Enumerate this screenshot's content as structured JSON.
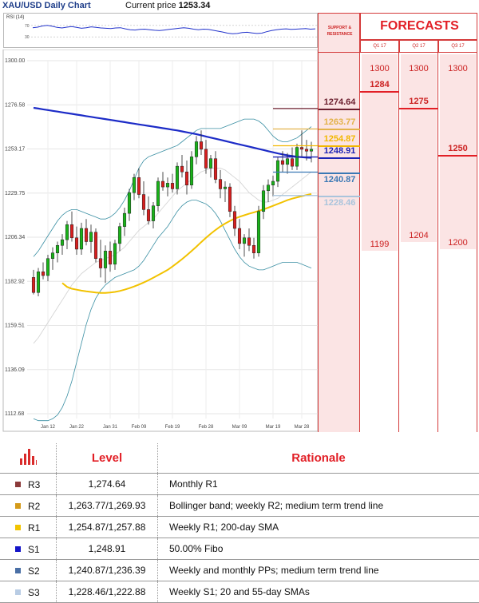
{
  "header": {
    "title": "XAU/USD Daily Chart",
    "current_price_label": "Current price",
    "current_price": "1253.34"
  },
  "rsi": {
    "label": "RSI (14)",
    "ticks": [
      "70",
      "30"
    ],
    "values": [
      62,
      64,
      68,
      70,
      67,
      63,
      61,
      64,
      66,
      63,
      60,
      62,
      65,
      63,
      61,
      60,
      59,
      61,
      62,
      58,
      55,
      54,
      56,
      57,
      55,
      53,
      52,
      54,
      56,
      58,
      60,
      62,
      60,
      57,
      55,
      57,
      56,
      53,
      50,
      47,
      43,
      41,
      42,
      45,
      46,
      44,
      42,
      43,
      48,
      52,
      55,
      57,
      58,
      56,
      57,
      58,
      59,
      57,
      58
    ]
  },
  "chart_data": {
    "type": "candlestick",
    "ylim": [
      1105,
      1310
    ],
    "y_ticks": [
      "1300.00",
      "1276.58",
      "1253.17",
      "1229.75",
      "1206.34",
      "1182.92",
      "1159.51",
      "1136.09",
      "1112.68"
    ],
    "x_ticks": [
      {
        "label": "Jan 12",
        "index": 3
      },
      {
        "label": "Jan 22",
        "index": 9
      },
      {
        "label": "Jan 31",
        "index": 16
      },
      {
        "label": "Feb 09",
        "index": 22
      },
      {
        "label": "Feb 19",
        "index": 29
      },
      {
        "label": "Feb 28",
        "index": 36
      },
      {
        "label": "Mar 09",
        "index": 43
      },
      {
        "label": "Mar 19",
        "index": 50
      },
      {
        "label": "Mar 28",
        "index": 56
      }
    ],
    "candles": [
      [
        1185,
        1189,
        1176,
        1177
      ],
      [
        1177,
        1190,
        1175,
        1188
      ],
      [
        1188,
        1193,
        1184,
        1186
      ],
      [
        1186,
        1197,
        1183,
        1195
      ],
      [
        1195,
        1201,
        1189,
        1198
      ],
      [
        1198,
        1204,
        1193,
        1202
      ],
      [
        1202,
        1208,
        1197,
        1205
      ],
      [
        1205,
        1215,
        1200,
        1213
      ],
      [
        1213,
        1220,
        1204,
        1206
      ],
      [
        1206,
        1212,
        1197,
        1200
      ],
      [
        1200,
        1214,
        1197,
        1211
      ],
      [
        1211,
        1216,
        1202,
        1204
      ],
      [
        1204,
        1213,
        1198,
        1209
      ],
      [
        1209,
        1211,
        1193,
        1195
      ],
      [
        1195,
        1205,
        1185,
        1190
      ],
      [
        1190,
        1202,
        1182,
        1199
      ],
      [
        1199,
        1204,
        1188,
        1192
      ],
      [
        1192,
        1205,
        1189,
        1203
      ],
      [
        1203,
        1214,
        1199,
        1212
      ],
      [
        1212,
        1222,
        1207,
        1219
      ],
      [
        1219,
        1232,
        1215,
        1230
      ],
      [
        1230,
        1240,
        1226,
        1238
      ],
      [
        1238,
        1243,
        1227,
        1229
      ],
      [
        1229,
        1236,
        1218,
        1221
      ],
      [
        1221,
        1228,
        1213,
        1215
      ],
      [
        1215,
        1225,
        1211,
        1223
      ],
      [
        1223,
        1238,
        1220,
        1236
      ],
      [
        1236,
        1241,
        1231,
        1233
      ],
      [
        1233,
        1238,
        1228,
        1235
      ],
      [
        1235,
        1240,
        1230,
        1232
      ],
      [
        1232,
        1246,
        1229,
        1244
      ],
      [
        1244,
        1250,
        1238,
        1241
      ],
      [
        1241,
        1247,
        1229,
        1234
      ],
      [
        1234,
        1252,
        1232,
        1249
      ],
      [
        1249,
        1260,
        1245,
        1257
      ],
      [
        1257,
        1263,
        1250,
        1253
      ],
      [
        1253,
        1258,
        1240,
        1243
      ],
      [
        1243,
        1250,
        1238,
        1248
      ],
      [
        1248,
        1252,
        1235,
        1237
      ],
      [
        1237,
        1242,
        1227,
        1232
      ],
      [
        1232,
        1236,
        1225,
        1233
      ],
      [
        1233,
        1235,
        1217,
        1220
      ],
      [
        1220,
        1223,
        1207,
        1211
      ],
      [
        1211,
        1216,
        1200,
        1203
      ],
      [
        1203,
        1208,
        1196,
        1206
      ],
      [
        1206,
        1211,
        1199,
        1202
      ],
      [
        1202,
        1206,
        1195,
        1198
      ],
      [
        1198,
        1223,
        1196,
        1220
      ],
      [
        1220,
        1234,
        1216,
        1231
      ],
      [
        1231,
        1237,
        1225,
        1234
      ],
      [
        1234,
        1239,
        1228,
        1236
      ],
      [
        1236,
        1249,
        1233,
        1247
      ],
      [
        1247,
        1252,
        1241,
        1245
      ],
      [
        1245,
        1251,
        1240,
        1248
      ],
      [
        1248,
        1254,
        1242,
        1244
      ],
      [
        1244,
        1256,
        1242,
        1254
      ],
      [
        1254,
        1263,
        1249,
        1253
      ],
      [
        1253,
        1258,
        1247,
        1252
      ],
      [
        1252,
        1257,
        1246,
        1253
      ]
    ],
    "sma200": [
      1275,
      1274.6,
      1274.2,
      1273.8,
      1273.4,
      1273,
      1272.6,
      1272.2,
      1271.8,
      1271.4,
      1271,
      1270.6,
      1270.2,
      1269.8,
      1269.4,
      1269,
      1268.6,
      1268.2,
      1267.8,
      1267.4,
      1267,
      1266.6,
      1266.2,
      1265.8,
      1265.4,
      1265,
      1264.6,
      1264.2,
      1263.8,
      1263.4,
      1263,
      1262.5,
      1262,
      1261.5,
      1261,
      1260.4,
      1259.8,
      1259.2,
      1258.6,
      1258,
      1257.4,
      1256.8,
      1256.2,
      1255.6,
      1255,
      1254.4,
      1253.8,
      1253.2,
      1252.6,
      1252,
      1251.4,
      1250.8,
      1250.3,
      1249.8,
      1249.4,
      1249,
      1248.8,
      1248.6,
      1248.5
    ],
    "sma55": [
      null,
      null,
      null,
      null,
      null,
      null,
      1182,
      1180,
      1179,
      1178.5,
      1178,
      1177.6,
      1177.3,
      1177,
      1176.8,
      1176.8,
      1177,
      1177.3,
      1177.8,
      1178.5,
      1179.3,
      1180.2,
      1181.2,
      1182.3,
      1183.5,
      1184.8,
      1186.2,
      1187.6,
      1189,
      1190.8,
      1192.7,
      1194.7,
      1196.8,
      1199,
      1201.3,
      1203.7,
      1206,
      1208.2,
      1210.2,
      1212,
      1213.6,
      1215,
      1216.2,
      1217.2,
      1218,
      1218.8,
      1219.5,
      1220.3,
      1221.1,
      1222,
      1223,
      1224,
      1225,
      1226,
      1226.8,
      1227.5,
      1228.1,
      1228.7,
      1229.3
    ],
    "sma20": [
      1150,
      1153,
      1157,
      1161,
      1165,
      1169,
      1173,
      1177,
      1181,
      1184,
      1187,
      1189,
      1191,
      1193,
      1194,
      1195,
      1196,
      1197,
      1199,
      1201,
      1204,
      1207,
      1210,
      1212,
      1214,
      1216,
      1219,
      1222,
      1225,
      1228,
      1231,
      1233,
      1235,
      1237,
      1239,
      1241,
      1242,
      1243,
      1243,
      1243,
      1242,
      1240,
      1238,
      1236,
      1233,
      1230,
      1228,
      1226,
      1225,
      1225,
      1226,
      1227,
      1229,
      1231,
      1233,
      1235,
      1237,
      1239,
      1241
    ],
    "bb_upper": [
      1196,
      1199,
      1203,
      1207,
      1211,
      1215,
      1218,
      1220,
      1221,
      1221,
      1220,
      1219,
      1218,
      1217,
      1216,
      1216,
      1217,
      1219,
      1222,
      1226,
      1231,
      1237,
      1243,
      1247,
      1249,
      1250,
      1251,
      1252,
      1253,
      1254,
      1255,
      1257,
      1259,
      1261,
      1263,
      1264,
      1264,
      1264,
      1264,
      1264,
      1265,
      1266,
      1267,
      1268,
      1269,
      1269,
      1269,
      1268,
      1266,
      1263,
      1260,
      1258,
      1257,
      1257,
      1258,
      1259,
      1261,
      1263,
      1265
    ],
    "bb_lower": [
      1110,
      1109,
      1109,
      1109,
      1110,
      1112,
      1116,
      1122,
      1130,
      1140,
      1150,
      1160,
      1168,
      1174,
      1178,
      1181,
      1183,
      1185,
      1186,
      1187,
      1188,
      1189,
      1191,
      1194,
      1198,
      1202,
      1206,
      1209,
      1212,
      1216,
      1220,
      1223,
      1225,
      1226,
      1226,
      1225,
      1224,
      1222,
      1219,
      1215,
      1210,
      1205,
      1200,
      1196,
      1193,
      1191,
      1190,
      1189,
      1189,
      1190,
      1191,
      1192,
      1193,
      1193,
      1193,
      1193,
      1192,
      1191,
      1190
    ],
    "support_resistance_label": "SUPPORT & RESISTANCE",
    "levels": [
      {
        "value": 1274.64,
        "label": "1274.64",
        "color": "#6b1f2e"
      },
      {
        "value": 1263.77,
        "label": "1263.77",
        "color": "#e3b24a"
      },
      {
        "value": 1254.87,
        "label": "1254.87",
        "color": "#f2b800"
      },
      {
        "value": 1248.91,
        "label": "1248.91",
        "color": "#1d23b5"
      },
      {
        "value": 1240.87,
        "label": "1240.87",
        "color": "#3a78b5"
      },
      {
        "value": 1228.46,
        "label": "1228.46",
        "color": "#a9c4dc"
      }
    ]
  },
  "forecasts": {
    "title": "FORECASTS",
    "quarters": [
      {
        "label": "Q1 17",
        "high": "1300",
        "median": "1284",
        "low": "1199",
        "median_value": 1284,
        "low_value": 1199
      },
      {
        "label": "Q2 17",
        "high": "1300",
        "median": "1275",
        "low": "1204",
        "median_value": 1275,
        "low_value": 1204
      },
      {
        "label": "Q3 17",
        "high": "1300",
        "median": "1250",
        "low": "1200",
        "median_value": 1250,
        "low_value": 1200
      }
    ]
  },
  "table": {
    "headers": {
      "level": "Level",
      "rationale": "Rationale"
    },
    "rows": [
      {
        "name": "R3",
        "color": "#8b3a3a",
        "level": "1,274.64",
        "rationale": "Monthly R1"
      },
      {
        "name": "R2",
        "color": "#d49a1a",
        "level": "1,263.77/1,269.93",
        "rationale": "Bollinger band; weekly R2; medium term trend line"
      },
      {
        "name": "R1",
        "color": "#f2c400",
        "level": "1,254.87/1,257.88",
        "rationale": "Weekly R1; 200-day SMA"
      },
      {
        "name": "S1",
        "color": "#1414c8",
        "level": "1,248.91",
        "rationale": "50.00% Fibo"
      },
      {
        "name": "S2",
        "color": "#4a6fa5",
        "level": "1,240.87/1,236.39",
        "rationale": "Weekly and monthly PPs; medium term trend line"
      },
      {
        "name": "S3",
        "color": "#b8cce4",
        "level": "1,228.46/1,222.88",
        "rationale": "Weekly S1; 20 and 55-day SMAs"
      }
    ]
  }
}
